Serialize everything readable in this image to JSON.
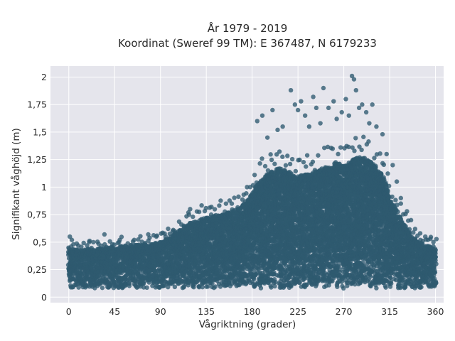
{
  "chart_data": {
    "type": "scatter",
    "title_line1": "År 1979 - 2019",
    "title_line2": "Koordinat (Sweref 99 TM): E 367487, N 6179233",
    "xlabel": "Vågriktning (grader)",
    "ylabel": "Signifikant våghöjd (m)",
    "xlim": [
      -18,
      368
    ],
    "ylim": [
      -0.05,
      2.1
    ],
    "x_ticks": [
      0,
      45,
      90,
      135,
      180,
      225,
      270,
      315,
      360
    ],
    "x_tick_labels": [
      "0",
      "45",
      "90",
      "135",
      "180",
      "225",
      "270",
      "315",
      "360"
    ],
    "y_ticks": [
      0,
      0.25,
      0.5,
      0.75,
      1,
      1.25,
      1.5,
      1.75,
      2
    ],
    "y_tick_labels": [
      "0",
      "0,25",
      "0,5",
      "0,75",
      "1",
      "1,25",
      "1,5",
      "1,75",
      "2"
    ],
    "grid": true,
    "marker_color": "#2e5a70",
    "background_color": "#e5e5ec",
    "envelope": {
      "direction_deg": [
        0,
        10,
        20,
        30,
        45,
        60,
        75,
        90,
        100,
        110,
        120,
        135,
        150,
        165,
        175,
        185,
        195,
        205,
        215,
        225,
        235,
        245,
        255,
        262,
        270,
        278,
        285,
        292,
        300,
        310,
        315,
        322,
        330,
        340,
        350,
        360
      ],
      "lower_height_m": [
        0.08,
        0.08,
        0.08,
        0.08,
        0.08,
        0.08,
        0.08,
        0.08,
        0.08,
        0.08,
        0.08,
        0.08,
        0.08,
        0.08,
        0.08,
        0.08,
        0.08,
        0.08,
        0.08,
        0.08,
        0.08,
        0.08,
        0.08,
        0.08,
        0.08,
        0.08,
        0.08,
        0.08,
        0.08,
        0.08,
        0.08,
        0.08,
        0.08,
        0.08,
        0.08,
        0.08
      ],
      "upper_height_m": [
        0.44,
        0.43,
        0.44,
        0.45,
        0.46,
        0.47,
        0.48,
        0.5,
        0.55,
        0.62,
        0.68,
        0.72,
        0.75,
        0.8,
        0.88,
        1.02,
        1.12,
        1.18,
        1.15,
        1.1,
        1.12,
        1.15,
        1.18,
        1.22,
        1.2,
        1.25,
        1.28,
        1.26,
        1.2,
        1.08,
        0.92,
        0.8,
        0.65,
        0.52,
        0.48,
        0.45
      ]
    },
    "outliers": [
      {
        "x": 1,
        "y": 0.55
      },
      {
        "x": 3,
        "y": 0.52
      },
      {
        "x": 20,
        "y": 0.5
      },
      {
        "x": 35,
        "y": 0.57
      },
      {
        "x": 50,
        "y": 0.52
      },
      {
        "x": 78,
        "y": 0.57
      },
      {
        "x": 95,
        "y": 0.55
      },
      {
        "x": 102,
        "y": 0.6
      },
      {
        "x": 118,
        "y": 0.75
      },
      {
        "x": 140,
        "y": 0.82
      },
      {
        "x": 160,
        "y": 0.85
      },
      {
        "x": 175,
        "y": 1.0
      },
      {
        "x": 185,
        "y": 1.6
      },
      {
        "x": 190,
        "y": 1.65
      },
      {
        "x": 195,
        "y": 1.45
      },
      {
        "x": 200,
        "y": 1.7
      },
      {
        "x": 205,
        "y": 1.52
      },
      {
        "x": 210,
        "y": 1.55
      },
      {
        "x": 218,
        "y": 1.88
      },
      {
        "x": 222,
        "y": 1.75
      },
      {
        "x": 225,
        "y": 1.7
      },
      {
        "x": 228,
        "y": 1.78
      },
      {
        "x": 232,
        "y": 1.65
      },
      {
        "x": 236,
        "y": 1.55
      },
      {
        "x": 240,
        "y": 1.82
      },
      {
        "x": 243,
        "y": 1.72
      },
      {
        "x": 247,
        "y": 1.58
      },
      {
        "x": 250,
        "y": 1.9
      },
      {
        "x": 255,
        "y": 1.72
      },
      {
        "x": 260,
        "y": 1.78
      },
      {
        "x": 263,
        "y": 1.62
      },
      {
        "x": 268,
        "y": 1.68
      },
      {
        "x": 272,
        "y": 1.8
      },
      {
        "x": 275,
        "y": 1.65
      },
      {
        "x": 278,
        "y": 2.01
      },
      {
        "x": 280,
        "y": 1.98
      },
      {
        "x": 282,
        "y": 1.88
      },
      {
        "x": 285,
        "y": 1.72
      },
      {
        "x": 288,
        "y": 1.75
      },
      {
        "x": 292,
        "y": 1.68
      },
      {
        "x": 295,
        "y": 1.58
      },
      {
        "x": 298,
        "y": 1.75
      },
      {
        "x": 302,
        "y": 1.55
      },
      {
        "x": 308,
        "y": 1.48
      },
      {
        "x": 312,
        "y": 1.3
      },
      {
        "x": 318,
        "y": 1.2
      },
      {
        "x": 322,
        "y": 1.05
      },
      {
        "x": 326,
        "y": 0.9
      },
      {
        "x": 332,
        "y": 0.78
      },
      {
        "x": 336,
        "y": 0.7
      },
      {
        "x": 340,
        "y": 0.62
      },
      {
        "x": 345,
        "y": 0.58
      },
      {
        "x": 350,
        "y": 0.55
      },
      {
        "x": 355,
        "y": 0.53
      },
      {
        "x": 358,
        "y": 0.5
      }
    ]
  }
}
